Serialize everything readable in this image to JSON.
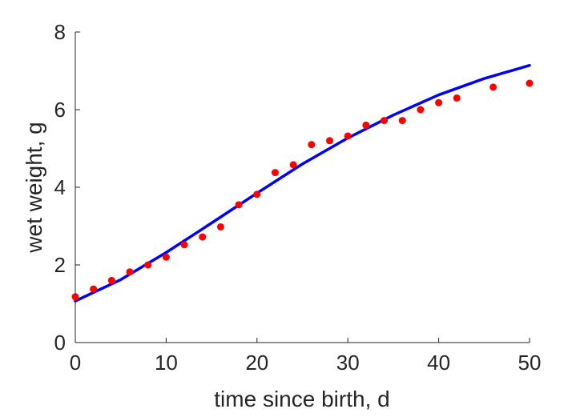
{
  "chart_data": {
    "type": "scatter",
    "title": "",
    "xlabel": "time since birth, d",
    "ylabel": "wet weight, g",
    "xlim": [
      0,
      50
    ],
    "ylim": [
      0,
      8
    ],
    "xticks": [
      0,
      10,
      20,
      30,
      40,
      50
    ],
    "yticks": [
      0,
      2,
      4,
      6,
      8
    ],
    "grid": false,
    "series": [
      {
        "kind": "scatter",
        "color": "#ff0000",
        "points": [
          [
            0,
            1.18
          ],
          [
            2,
            1.38
          ],
          [
            4,
            1.6
          ],
          [
            6,
            1.82
          ],
          [
            8,
            2.0
          ],
          [
            10,
            2.2
          ],
          [
            12,
            2.52
          ],
          [
            14,
            2.72
          ],
          [
            16,
            2.98
          ],
          [
            18,
            3.55
          ],
          [
            20,
            3.82
          ],
          [
            22,
            4.38
          ],
          [
            24,
            4.58
          ],
          [
            26,
            5.1
          ],
          [
            28,
            5.2
          ],
          [
            30,
            5.32
          ],
          [
            32,
            5.6
          ],
          [
            34,
            5.72
          ],
          [
            36,
            5.72
          ],
          [
            38,
            6.0
          ],
          [
            40,
            6.18
          ],
          [
            42,
            6.3
          ],
          [
            46,
            6.58
          ],
          [
            50,
            6.68
          ]
        ]
      },
      {
        "kind": "line",
        "color": "#0000ff",
        "points": [
          [
            0,
            1.07
          ],
          [
            5,
            1.62
          ],
          [
            10,
            2.32
          ],
          [
            15,
            3.08
          ],
          [
            20,
            3.85
          ],
          [
            25,
            4.6
          ],
          [
            30,
            5.27
          ],
          [
            35,
            5.86
          ],
          [
            40,
            6.38
          ],
          [
            45,
            6.8
          ],
          [
            50,
            7.14
          ]
        ]
      }
    ]
  }
}
